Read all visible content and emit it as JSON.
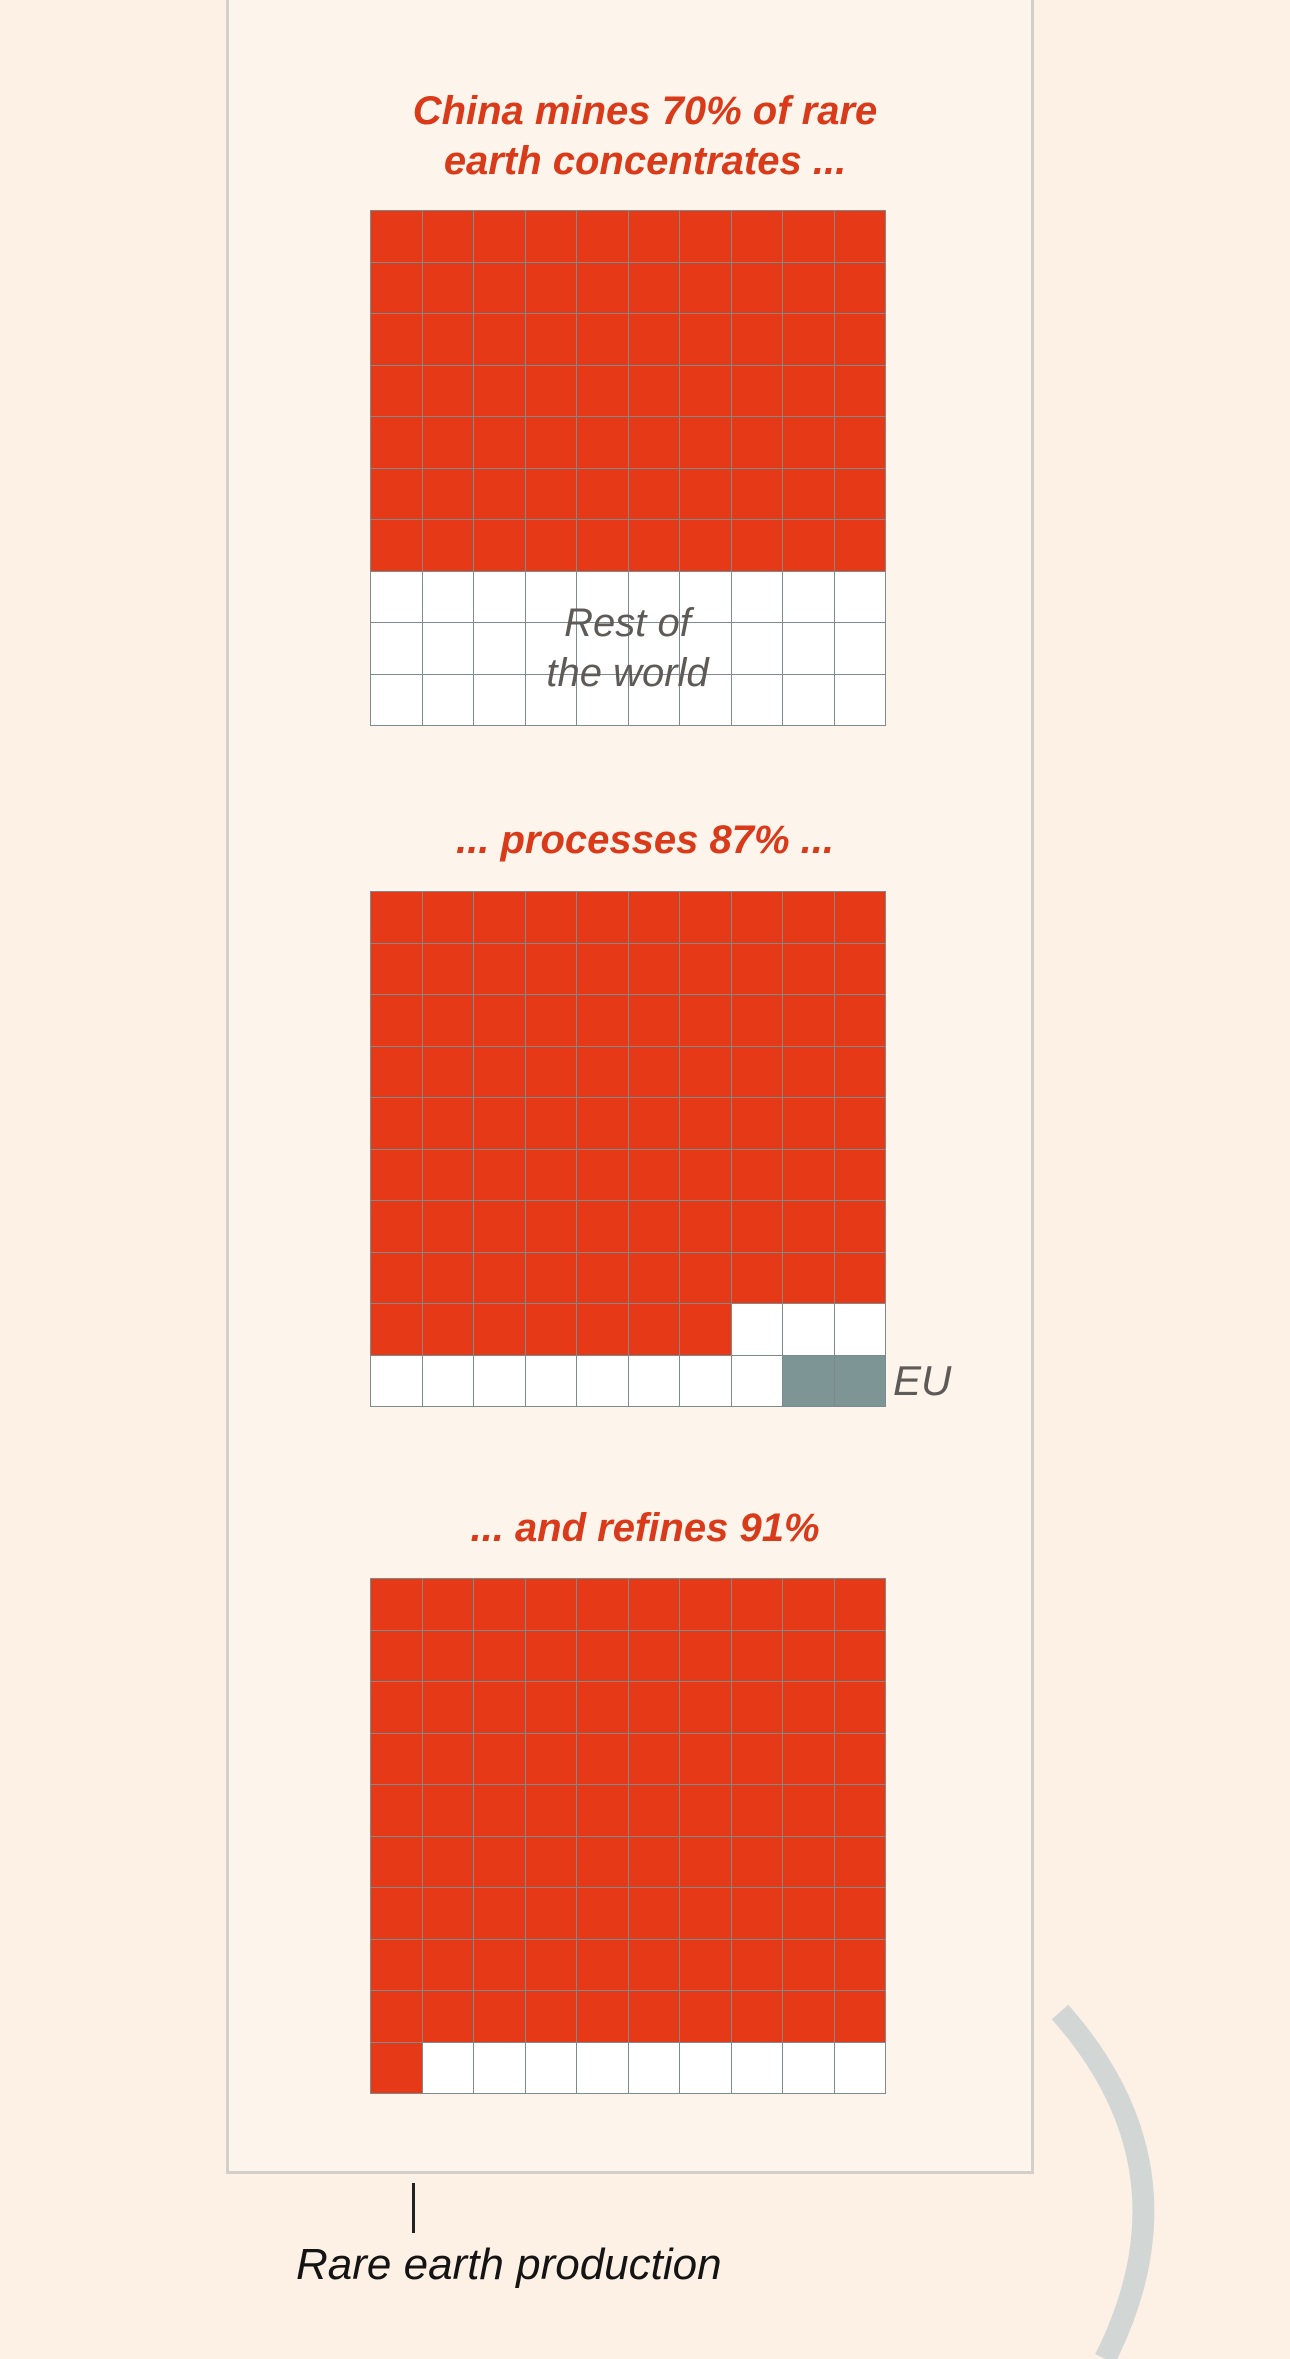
{
  "chart_data": [
    {
      "type": "waffle",
      "title": "China mines 70% of rare earth concentrates ...",
      "title_lines": [
        "China mines 70% of rare",
        "earth concentrates ..."
      ],
      "grid": [
        10,
        10
      ],
      "segments": [
        {
          "name": "China",
          "value": 70,
          "color": "#e63917"
        },
        {
          "name": "Rest of the world",
          "value": 30,
          "color": "#ffffff"
        }
      ],
      "annotation": "Rest of the world",
      "annotation_lines": [
        "Rest of",
        "the world"
      ]
    },
    {
      "type": "waffle",
      "title": "... processes 87% ...",
      "grid": [
        10,
        10
      ],
      "segments": [
        {
          "name": "China",
          "value": 87,
          "color": "#e63917"
        },
        {
          "name": "Rest of the world",
          "value": 11,
          "color": "#ffffff"
        },
        {
          "name": "EU",
          "value": 2,
          "color": "#7e9595"
        }
      ],
      "annotation": "EU"
    },
    {
      "type": "waffle",
      "title": "... and refines 91%",
      "grid": [
        10,
        10
      ],
      "segments": [
        {
          "name": "China",
          "value": 91,
          "color": "#e63917"
        },
        {
          "name": "Rest of the world",
          "value": 9,
          "color": "#ffffff"
        }
      ]
    }
  ],
  "caption": "Rare earth production",
  "colors": {
    "china": "#e63917",
    "rest": "#ffffff",
    "eu": "#7e9595",
    "grid_line": "#7f8a8d",
    "title": "#d93a1a",
    "background": "#fdf1e6",
    "panel": "#fdf5ec"
  }
}
